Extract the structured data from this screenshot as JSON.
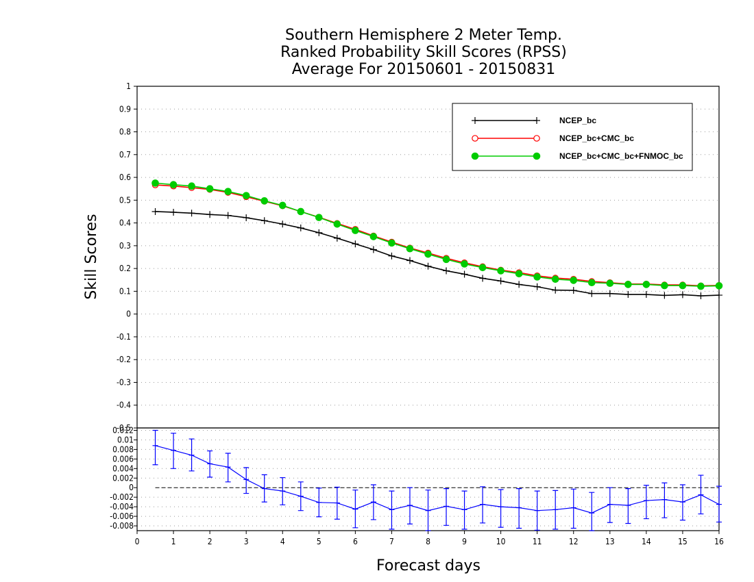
{
  "chart_data": [
    {
      "type": "line",
      "title": [
        "Southern Hemisphere 2 Meter Temp.",
        "Ranked Probability Skill Scores (RPSS)",
        "Average For 20150601 - 20150831"
      ],
      "xlabel": "Forecast days",
      "ylabel": "Skill Scores",
      "xlim": [
        0,
        16
      ],
      "ylim": [
        -0.5,
        1
      ],
      "grid": "horizontal dotted",
      "legend_position": "top-right",
      "x": [
        0.5,
        1.0,
        1.5,
        2.0,
        2.5,
        3.0,
        3.5,
        4.0,
        4.5,
        5.0,
        5.5,
        6.0,
        6.5,
        7.0,
        7.5,
        8.0,
        8.5,
        9.0,
        9.5,
        10.0,
        10.5,
        11.0,
        11.5,
        12.0,
        12.5,
        13.0,
        13.5,
        14.0,
        14.5,
        15.0,
        15.5,
        16.0
      ],
      "series": [
        {
          "name": "NCEP_bc",
          "color": "#000000",
          "marker": "plus",
          "values": [
            0.45,
            0.447,
            0.443,
            0.437,
            0.433,
            0.423,
            0.41,
            0.395,
            0.378,
            0.357,
            0.333,
            0.308,
            0.283,
            0.255,
            0.235,
            0.21,
            0.19,
            0.175,
            0.157,
            0.145,
            0.13,
            0.12,
            0.105,
            0.104,
            0.09,
            0.09,
            0.086,
            0.086,
            0.082,
            0.085,
            0.08,
            0.083
          ]
        },
        {
          "name": "NCEP_bc+CMC_bc",
          "color": "#ff0000",
          "marker": "open-circle",
          "values": [
            0.567,
            0.562,
            0.555,
            0.547,
            0.534,
            0.515,
            0.495,
            0.475,
            0.45,
            0.425,
            0.398,
            0.372,
            0.343,
            0.316,
            0.29,
            0.268,
            0.245,
            0.225,
            0.208,
            0.193,
            0.182,
            0.168,
            0.158,
            0.153,
            0.143,
            0.138,
            0.132,
            0.132,
            0.128,
            0.128,
            0.124,
            0.126
          ]
        },
        {
          "name": "NCEP_bc+CMC_bc+FNMOC_bc",
          "color": "#00cc00",
          "marker": "filled-circle",
          "values": [
            0.575,
            0.568,
            0.562,
            0.55,
            0.538,
            0.52,
            0.497,
            0.477,
            0.45,
            0.424,
            0.395,
            0.367,
            0.34,
            0.312,
            0.287,
            0.263,
            0.24,
            0.22,
            0.204,
            0.19,
            0.177,
            0.163,
            0.153,
            0.148,
            0.138,
            0.135,
            0.13,
            0.13,
            0.125,
            0.125,
            0.122,
            0.124
          ]
        }
      ]
    },
    {
      "type": "line",
      "xlim": [
        0,
        16
      ],
      "ylim": [
        -0.009,
        0.0125
      ],
      "color": "#0000ff",
      "yticks": [
        "0.012",
        "0.01",
        "0.008",
        "0.006",
        "0.004",
        "0.002",
        "0",
        "-0.002",
        "-0.004",
        "-0.006",
        "-0.008"
      ],
      "xticks": [
        "0",
        "1",
        "2",
        "3",
        "4",
        "5",
        "6",
        "7",
        "8",
        "9",
        "10",
        "11",
        "12",
        "13",
        "14",
        "15",
        "16"
      ],
      "x": [
        0.5,
        1.0,
        1.5,
        2.0,
        2.5,
        3.0,
        3.5,
        4.0,
        4.5,
        5.0,
        5.5,
        6.0,
        6.5,
        7.0,
        7.5,
        8.0,
        8.5,
        9.0,
        9.5,
        10.0,
        10.5,
        11.0,
        11.5,
        12.0,
        12.5,
        13.0,
        13.5,
        14.0,
        14.5,
        15.0,
        15.5,
        16.0
      ],
      "values": [
        0.0088,
        0.0078,
        0.0068,
        0.005,
        0.0043,
        0.0017,
        -0.0002,
        -0.0007,
        -0.0018,
        -0.0031,
        -0.0032,
        -0.0045,
        -0.003,
        -0.0046,
        -0.0037,
        -0.0048,
        -0.0039,
        -0.0046,
        -0.0035,
        -0.004,
        -0.0042,
        -0.0048,
        -0.0046,
        -0.0042,
        -0.0053,
        -0.0035,
        -0.0037,
        -0.0027,
        -0.0025,
        -0.003,
        -0.0015,
        -0.0035
      ],
      "lower": [
        0.0048,
        0.004,
        0.0035,
        0.0022,
        0.0012,
        -0.0012,
        -0.003,
        -0.0036,
        -0.0048,
        -0.0061,
        -0.0066,
        -0.0084,
        -0.0067,
        -0.0087,
        -0.0076,
        -0.009,
        -0.0079,
        -0.0087,
        -0.0074,
        -0.0083,
        -0.0085,
        -0.0089,
        -0.0087,
        -0.0085,
        -0.009,
        -0.0073,
        -0.0075,
        -0.0065,
        -0.0063,
        -0.0068,
        -0.0055,
        -0.0072
      ],
      "upper": [
        0.012,
        0.0114,
        0.0102,
        0.0077,
        0.0072,
        0.0042,
        0.0027,
        0.0021,
        0.0012,
        -0.0001,
        0.0001,
        -0.0005,
        0.0006,
        -0.0007,
        0.0,
        -0.0005,
        -0.0002,
        -0.0007,
        0.0002,
        -0.0004,
        -0.0002,
        -0.0007,
        -0.0006,
        -0.0003,
        -0.001,
        0.0,
        -0.0002,
        0.0005,
        0.001,
        0.0006,
        0.0026,
        0.0003
      ]
    }
  ]
}
